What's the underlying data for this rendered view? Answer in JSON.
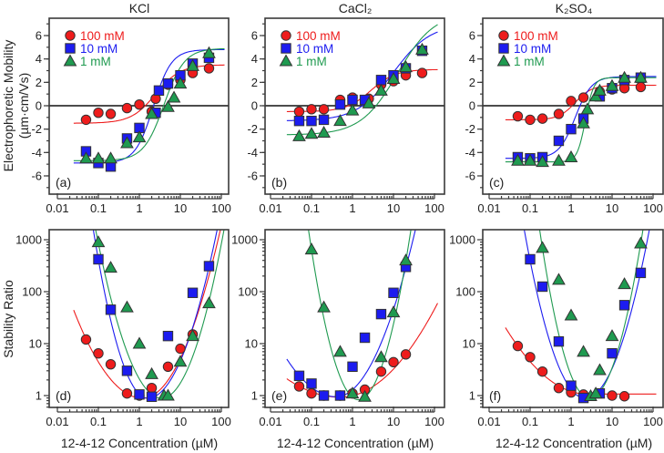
{
  "figure": {
    "y_label_top_line1": "Electrophoretic Mobility",
    "y_label_top_line2": "(µm·cm/Vs)",
    "y_label_bottom": "Stability Ratio",
    "x_label": "12-4-12 Concentration (µM)"
  },
  "colors": {
    "100 mM": "#ee1c1c",
    "10 mM": "#1c1cf0",
    "1 mM": "#1f9a50"
  },
  "chart_data": [
    {
      "panel": "(a)",
      "title": "KCl",
      "type": "scatter",
      "xscale": "log",
      "yscale": "linear",
      "xlim": [
        0.0063,
        150
      ],
      "ylim": [
        -7.5,
        7.5
      ],
      "xticks": [
        "0.01",
        "0.1",
        "1",
        "10",
        "100"
      ],
      "yticks": [
        -6,
        -4,
        -2,
        0,
        2,
        4,
        6
      ],
      "zero_line": true,
      "legend": "top-left",
      "series": [
        {
          "name": "100 mM",
          "marker": "circle",
          "x": [
            0.05,
            0.1,
            0.2,
            0.5,
            1,
            2,
            2.5,
            5,
            10,
            20,
            50
          ],
          "y": [
            -1.2,
            -0.6,
            -0.7,
            -0.2,
            0.1,
            -0.5,
            0.6,
            1.8,
            2.2,
            2.8,
            3.2
          ],
          "fit": {
            "lo": -1.5,
            "hi": 3.5,
            "center": 2.5,
            "width": 0.3
          }
        },
        {
          "name": "10 mM",
          "marker": "square",
          "x": [
            0.05,
            0.1,
            0.2,
            0.5,
            1,
            2.5,
            3,
            5,
            10,
            20,
            50
          ],
          "y": [
            -3.9,
            -4.9,
            -5.2,
            -2.8,
            -1.9,
            -0.6,
            1.3,
            1.9,
            2.6,
            3.6,
            4.1
          ],
          "fit": {
            "lo": -4.9,
            "hi": 4.8,
            "center": 2.2,
            "width": 0.22
          }
        },
        {
          "name": "1 mM",
          "marker": "triangle",
          "x": [
            0.05,
            0.1,
            0.2,
            0.5,
            1,
            2,
            5,
            7,
            10,
            20,
            50
          ],
          "y": [
            -4.5,
            -4.5,
            -4.5,
            -3.2,
            -2.7,
            -0.7,
            -0.1,
            0.7,
            1.9,
            3.4,
            4.5
          ],
          "fit": {
            "lo": -4.7,
            "hi": 4.9,
            "center": 4.0,
            "width": 0.25
          }
        }
      ]
    },
    {
      "panel": "(b)",
      "title": "CaCl₂",
      "type": "scatter",
      "xscale": "log",
      "yscale": "linear",
      "xlim": [
        0.0063,
        150
      ],
      "ylim": [
        -7.5,
        7.5
      ],
      "xticks": [
        "0.01",
        "0.1",
        "1",
        "10",
        "100"
      ],
      "yticks": [
        -6,
        -4,
        -2,
        0,
        2,
        4,
        6
      ],
      "zero_line": true,
      "legend": "top-left",
      "series": [
        {
          "name": "100 mM",
          "marker": "circle",
          "x": [
            0.05,
            0.1,
            0.2,
            0.5,
            1,
            2.5,
            5,
            10,
            20,
            50
          ],
          "y": [
            -0.5,
            -0.3,
            -0.3,
            0.5,
            0.7,
            0.6,
            1.8,
            2.1,
            2.6,
            2.8
          ],
          "fit": {
            "lo": -0.5,
            "hi": 3.1,
            "center": 2.8,
            "width": 0.3
          }
        },
        {
          "name": "10 mM",
          "marker": "square",
          "x": [
            0.05,
            0.1,
            0.2,
            0.5,
            1,
            2,
            5,
            10,
            20,
            50
          ],
          "y": [
            -1.3,
            -1.3,
            -1.2,
            0.1,
            0.5,
            0.5,
            2.2,
            2.6,
            3.2,
            4.7
          ],
          "fit": {
            "lo": -1.3,
            "hi": 7.0,
            "center": 10,
            "width": 0.45
          }
        },
        {
          "name": "1 mM",
          "marker": "triangle",
          "x": [
            0.05,
            0.1,
            0.2,
            0.5,
            1,
            2.5,
            5,
            10,
            20,
            50
          ],
          "y": [
            -2.6,
            -2.4,
            -2.3,
            -1.3,
            -0.4,
            0.2,
            1.3,
            2.3,
            3.3,
            4.8
          ],
          "fit": {
            "lo": -2.5,
            "hi": 8.0,
            "center": 12.5,
            "width": 0.45
          }
        }
      ]
    },
    {
      "panel": "(c)",
      "title": "K₂SO₄",
      "type": "scatter",
      "xscale": "log",
      "yscale": "linear",
      "xlim": [
        0.0063,
        150
      ],
      "ylim": [
        -7.5,
        7.5
      ],
      "xticks": [
        "0.01",
        "0.1",
        "1",
        "10",
        "100"
      ],
      "yticks": [
        -6,
        -4,
        -2,
        0,
        2,
        4,
        6
      ],
      "zero_line": true,
      "legend": "top-left",
      "series": [
        {
          "name": "100 mM",
          "marker": "circle",
          "x": [
            0.05,
            0.1,
            0.2,
            0.5,
            1,
            2,
            5,
            10,
            20,
            50
          ],
          "y": [
            -0.9,
            -1.2,
            -1.1,
            -0.7,
            0.4,
            0.7,
            1.2,
            1.4,
            1.5,
            1.6
          ],
          "fit": {
            "lo": -1.2,
            "hi": 1.75,
            "center": 1.26,
            "width": 0.2
          }
        },
        {
          "name": "10 mM",
          "marker": "square",
          "x": [
            0.05,
            0.1,
            0.2,
            0.5,
            1,
            2,
            5,
            10,
            20,
            50
          ],
          "y": [
            -4.4,
            -4.5,
            -4.4,
            -3.0,
            -2.0,
            -1.1,
            0.8,
            1.5,
            2.2,
            2.4
          ],
          "fit": {
            "lo": -4.5,
            "hi": 2.5,
            "center": 1.26,
            "width": 0.2
          }
        },
        {
          "name": "1 mM",
          "marker": "triangle",
          "x": [
            0.05,
            0.1,
            0.2,
            0.5,
            1,
            2,
            2.5,
            4,
            5,
            10,
            20,
            50
          ],
          "y": [
            -4.7,
            -4.7,
            -4.8,
            -4.7,
            -4.4,
            -1.5,
            -0.3,
            0.8,
            1.3,
            1.7,
            2.4,
            2.4
          ],
          "fit": {
            "lo": -4.8,
            "hi": 2.4,
            "center": 2.24,
            "width": 0.1
          }
        }
      ]
    },
    {
      "panel": "(d)",
      "type": "scatter",
      "xscale": "log",
      "yscale": "log",
      "xlim": [
        0.0063,
        150
      ],
      "ylim": [
        0.59,
        1550
      ],
      "xticks": [
        "0.01",
        "0.1",
        "1",
        "10",
        "100"
      ],
      "yticks": [
        "1",
        "10",
        "100",
        "1000"
      ],
      "series": [
        {
          "name": "100 mM",
          "marker": "circle",
          "x": [
            0.05,
            0.1,
            0.2,
            0.5,
            1,
            2,
            5,
            10,
            20
          ],
          "y": [
            12,
            6.5,
            4,
            1.1,
            1.0,
            1.4,
            3.6,
            8,
            15
          ],
          "fit": {
            "min_x": 1.2,
            "min_y": 0.89,
            "k_left": 0.6,
            "k_right": 0.9
          }
        },
        {
          "name": "10 mM",
          "marker": "square",
          "x": [
            0.1,
            0.2,
            0.5,
            1,
            2,
            5,
            20,
            50
          ],
          "y": [
            420,
            45,
            3,
            1.05,
            0.95,
            14,
            95,
            310
          ],
          "fit": {
            "min_x": 1.6,
            "min_y": 0.89,
            "k_left": 1.84,
            "k_right": 1.13
          }
        },
        {
          "name": "1 mM",
          "marker": "triangle",
          "x": [
            0.1,
            0.2,
            0.5,
            1,
            2,
            4,
            5,
            10,
            20,
            50
          ],
          "y": [
            900,
            290,
            50,
            10,
            2.6,
            1.0,
            1.0,
            4.5,
            14,
            60
          ],
          "fit": {
            "min_x": 3.5,
            "min_y": 0.89,
            "k_left": 1.25,
            "k_right": 1.4
          }
        }
      ]
    },
    {
      "panel": "(e)",
      "type": "scatter",
      "xscale": "log",
      "yscale": "log",
      "xlim": [
        0.0063,
        150
      ],
      "ylim": [
        0.59,
        1550
      ],
      "xticks": [
        "0.01",
        "0.1",
        "1",
        "10",
        "100"
      ],
      "yticks": [
        "1",
        "10",
        "100",
        "1000"
      ],
      "series": [
        {
          "name": "100 mM",
          "marker": "circle",
          "x": [
            0.05,
            0.1,
            0.2,
            0.5,
            1,
            2,
            5,
            10,
            20
          ],
          "y": [
            1.5,
            1.1,
            1.0,
            1.0,
            1.1,
            1.3,
            2.9,
            4.4,
            6.2
          ],
          "fit": {
            "min_x": 0.5,
            "min_y": 0.93,
            "k_left": 0.21,
            "k_right": 0.32
          }
        },
        {
          "name": "10 mM",
          "marker": "square",
          "x": [
            0.05,
            0.1,
            0.2,
            0.5,
            1,
            2,
            5,
            10,
            20
          ],
          "y": [
            2.4,
            1.7,
            1.0,
            1.0,
            3.6,
            13,
            37,
            95,
            300
          ],
          "fit": {
            "min_x": 0.4,
            "min_y": 0.95,
            "k_left": 0.5,
            "k_right": 0.86
          }
        },
        {
          "name": "1 mM",
          "marker": "triangle",
          "x": [
            0.1,
            0.2,
            0.5,
            1,
            2,
            5,
            10,
            20
          ],
          "y": [
            650,
            50,
            7,
            1.1,
            0.95,
            5.5,
            40,
            400
          ],
          "fit": {
            "min_x": 1.4,
            "min_y": 0.83,
            "k_left": 2.2,
            "k_right": 2.0
          }
        }
      ]
    },
    {
      "panel": "(f)",
      "type": "scatter",
      "xscale": "log",
      "yscale": "log",
      "xlim": [
        0.0063,
        150
      ],
      "ylim": [
        0.59,
        1550
      ],
      "xticks": [
        "0.01",
        "0.1",
        "1",
        "10",
        "100"
      ],
      "yticks": [
        "1",
        "10",
        "100",
        "1000"
      ],
      "series": [
        {
          "name": "100 mM",
          "marker": "circle",
          "x": [
            0.05,
            0.1,
            0.2,
            0.5,
            1,
            2,
            10,
            20
          ],
          "y": [
            9,
            5.5,
            2.9,
            1.4,
            1.15,
            1.05,
            1.0,
            0.97
          ],
          "fit": {
            "min_x": 2.5,
            "min_y": 1.07,
            "k_left": 0.32,
            "k_right": 0.0
          }
        },
        {
          "name": "10 mM",
          "marker": "square",
          "x": [
            0.1,
            0.2,
            0.5,
            1,
            2,
            5,
            10,
            20,
            50
          ],
          "y": [
            420,
            125,
            11,
            1.55,
            0.9,
            1.1,
            6.5,
            55,
            230
          ],
          "fit": {
            "min_x": 2.2,
            "min_y": 0.89,
            "k_left": 1.47,
            "k_right": 1.32
          }
        },
        {
          "name": "1 mM",
          "marker": "triangle",
          "x": [
            0.2,
            0.5,
            1,
            2,
            3,
            4,
            5,
            10,
            20,
            50
          ],
          "y": [
            700,
            170,
            35,
            7,
            0.98,
            1.1,
            3.1,
            14,
            140,
            850
          ],
          "fit": {
            "min_x": 2.8,
            "min_y": 0.89,
            "k_left": 2.2,
            "k_right": 1.9
          }
        }
      ]
    }
  ]
}
